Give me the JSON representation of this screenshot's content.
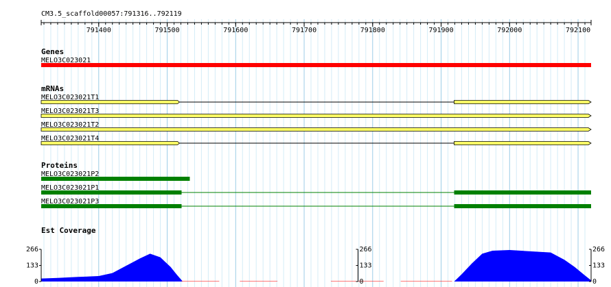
{
  "ruler": {
    "title": "CM3.5_scaffold00057:791316..792119",
    "xlim": [
      791316,
      792119
    ],
    "ticks": [
      791400,
      791500,
      791600,
      791700,
      791800,
      791900,
      792000,
      792100
    ]
  },
  "tracks": [
    {
      "title": "Genes",
      "style": "gene",
      "color": "#ff0000",
      "features": [
        {
          "name": "MELO3C023021",
          "parts": [
            [
              791316,
              792119
            ]
          ]
        }
      ]
    },
    {
      "title": "mRNAs",
      "style": "arrow",
      "color": "#ffff66",
      "features": [
        {
          "name": "MELO3C023021T1",
          "parts": [
            [
              791316,
              791518
            ],
            [
              791919,
              792119
            ]
          ]
        },
        {
          "name": "MELO3C023021T3",
          "parts": [
            [
              791316,
              792119
            ]
          ]
        },
        {
          "name": "MELO3C023021T2",
          "parts": [
            [
              791316,
              792119
            ]
          ]
        },
        {
          "name": "MELO3C023021T4",
          "parts": [
            [
              791316,
              791518
            ],
            [
              791919,
              792119
            ]
          ]
        }
      ]
    },
    {
      "title": "Proteins",
      "style": "protein",
      "color": "#008000",
      "features": [
        {
          "name": "MELO3C023021P2",
          "parts": [
            [
              791316,
              791533
            ]
          ]
        },
        {
          "name": "MELO3C023021P1",
          "parts": [
            [
              791316,
              791521
            ],
            [
              791919,
              792119
            ]
          ]
        },
        {
          "name": "MELO3C023021P3",
          "parts": [
            [
              791316,
              791521
            ],
            [
              791919,
              792119
            ]
          ]
        }
      ]
    }
  ],
  "coverage": {
    "title": "Est Coverage",
    "ylim": [
      0,
      266
    ],
    "yticks": [
      0,
      133,
      266
    ],
    "color": "#0000ff",
    "low_color": "#ff0000",
    "regions": [
      {
        "x": [
          791316,
          791340,
          791370,
          791400,
          791420,
          791440,
          791460,
          791475,
          791490,
          791505,
          791515,
          791522
        ],
        "values": [
          25,
          30,
          38,
          45,
          70,
          130,
          190,
          230,
          200,
          120,
          50,
          5
        ]
      },
      {
        "x": [
          791919,
          791930,
          791945,
          791960,
          791975,
          792000,
          792030,
          792060,
          792080,
          792095,
          792110,
          792119
        ],
        "values": [
          0,
          60,
          150,
          230,
          255,
          260,
          250,
          240,
          180,
          120,
          50,
          10
        ]
      }
    ],
    "low_segments": [
      {
        "start": 791521,
        "end": 791576,
        "value": 3
      },
      {
        "start": 791606,
        "end": 791661,
        "value": 3
      },
      {
        "start": 791739,
        "end": 791816,
        "value": 3
      },
      {
        "start": 791841,
        "end": 791916,
        "value": 3
      }
    ]
  }
}
